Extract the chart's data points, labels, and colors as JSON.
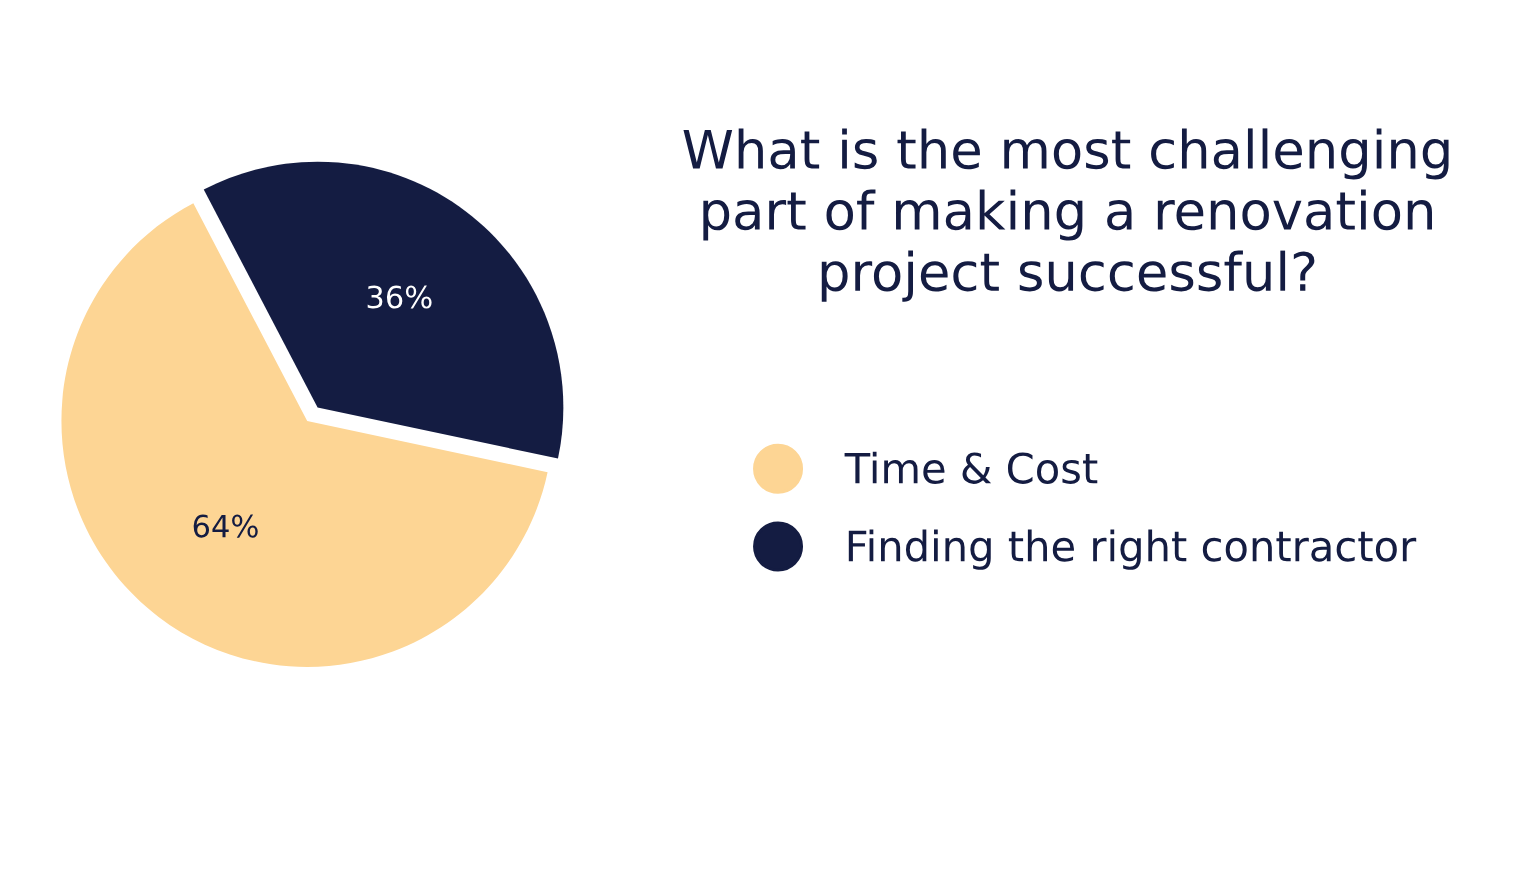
{
  "chart_data": {
    "type": "pie",
    "title": "What is the most challenging\npart of making a renovation\nproject successful?",
    "categories": [
      "Time & Cost",
      "Finding the right contractor"
    ],
    "values": [
      64,
      36
    ],
    "colors": [
      "#fdd594",
      "#141c42"
    ],
    "value_labels": [
      "64%",
      "36%"
    ],
    "legend": "right"
  }
}
